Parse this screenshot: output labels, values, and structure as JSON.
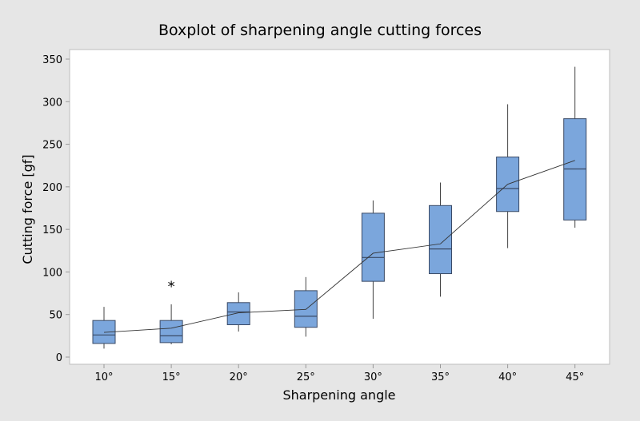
{
  "chart_data": {
    "type": "boxplot",
    "title": "Boxplot of sharpening angle cutting forces",
    "xlabel": "Sharpening angle",
    "ylabel": "Cutting force [gf]",
    "ylim": [
      0,
      350
    ],
    "yticks": [
      0,
      50,
      100,
      150,
      200,
      250,
      300,
      350
    ],
    "categories": [
      "10°",
      "15°",
      "20°",
      "25°",
      "30°",
      "35°",
      "40°",
      "45°"
    ],
    "boxes": [
      {
        "min": 10,
        "q1": 16,
        "median": 26,
        "q3": 43,
        "max": 59,
        "mean": 29,
        "outliers": []
      },
      {
        "min": 15,
        "q1": 17,
        "median": 25,
        "q3": 43,
        "max": 62,
        "mean": 34,
        "outliers": [
          86
        ]
      },
      {
        "min": 30,
        "q1": 38,
        "median": 53,
        "q3": 64,
        "max": 76,
        "mean": 52,
        "outliers": []
      },
      {
        "min": 24,
        "q1": 35,
        "median": 48,
        "q3": 78,
        "max": 94,
        "mean": 56,
        "outliers": []
      },
      {
        "min": 45,
        "q1": 89,
        "median": 117,
        "q3": 169,
        "max": 184,
        "mean": 122,
        "outliers": []
      },
      {
        "min": 71,
        "q1": 98,
        "median": 127,
        "q3": 178,
        "max": 205,
        "mean": 133,
        "outliers": []
      },
      {
        "min": 128,
        "q1": 171,
        "median": 198,
        "q3": 235,
        "max": 297,
        "mean": 203,
        "outliers": []
      },
      {
        "min": 152,
        "q1": 161,
        "median": 221,
        "q3": 280,
        "max": 341,
        "mean": 231,
        "outliers": []
      }
    ],
    "mean_connect_line": true,
    "grid": false,
    "colors": {
      "box_fill": "#7ba6dc",
      "box_edge": "#3a4a66",
      "background": "#e6e6e6",
      "plot_bg": "#ffffff"
    }
  }
}
